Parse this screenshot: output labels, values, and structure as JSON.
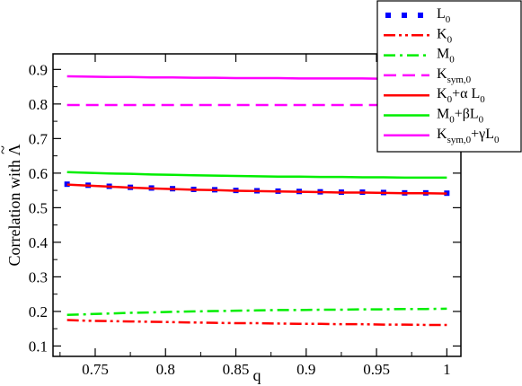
{
  "chart_data": {
    "type": "line",
    "xlabel": "q",
    "ylabel_prefix": "Correlation with ",
    "ylabel_symbol": "Λ",
    "ylabel_accent": "~",
    "xlim": [
      0.72,
      1.01
    ],
    "ylim": [
      0.07,
      0.945
    ],
    "x_ticks": [
      0.75,
      0.8,
      0.85,
      0.9,
      0.95,
      1
    ],
    "x_tick_labels": [
      "0.75",
      "0.8",
      "0.85",
      "0.9",
      "0.95",
      "1"
    ],
    "y_ticks": [
      0.1,
      0.2,
      0.3,
      0.4,
      0.5,
      0.6,
      0.7,
      0.8,
      0.9
    ],
    "y_tick_labels": [
      "0.1",
      "0.2",
      "0.3",
      "0.4",
      "0.5",
      "0.6",
      "0.7",
      "0.8",
      "0.9"
    ],
    "x": [
      0.73,
      0.745,
      0.76,
      0.775,
      0.79,
      0.805,
      0.82,
      0.835,
      0.85,
      0.865,
      0.88,
      0.895,
      0.91,
      0.925,
      0.94,
      0.955,
      0.97,
      0.985,
      1.0
    ],
    "series": [
      {
        "id": "L0",
        "color": "#0000ff",
        "style": "squares",
        "legend": [
          {
            "t": "L"
          },
          {
            "t": "0",
            "sub": true
          }
        ],
        "values": [
          0.568,
          0.565,
          0.562,
          0.559,
          0.557,
          0.555,
          0.553,
          0.552,
          0.55,
          0.549,
          0.548,
          0.547,
          0.546,
          0.545,
          0.545,
          0.544,
          0.543,
          0.543,
          0.542
        ]
      },
      {
        "id": "K0",
        "color": "#ff0000",
        "style": "dashdotdot",
        "legend": [
          {
            "t": "K"
          },
          {
            "t": "0",
            "sub": true
          }
        ],
        "values": [
          0.175,
          0.173,
          0.172,
          0.171,
          0.17,
          0.169,
          0.168,
          0.167,
          0.166,
          0.166,
          0.165,
          0.164,
          0.164,
          0.163,
          0.163,
          0.162,
          0.162,
          0.161,
          0.161
        ]
      },
      {
        "id": "M0",
        "color": "#00ee00",
        "style": "dashdot",
        "legend": [
          {
            "t": "M"
          },
          {
            "t": "0",
            "sub": true
          }
        ],
        "values": [
          0.19,
          0.192,
          0.194,
          0.196,
          0.197,
          0.199,
          0.2,
          0.201,
          0.202,
          0.203,
          0.204,
          0.204,
          0.205,
          0.205,
          0.206,
          0.206,
          0.207,
          0.207,
          0.208
        ]
      },
      {
        "id": "Ksym0",
        "color": "#ff00ff",
        "style": "dashed",
        "legend": [
          {
            "t": "K"
          },
          {
            "t": "sym,0",
            "sub": true
          }
        ],
        "values": [
          0.797,
          0.797,
          0.797,
          0.797,
          0.797,
          0.797,
          0.797,
          0.797,
          0.797,
          0.797,
          0.797,
          0.797,
          0.797,
          0.797,
          0.797,
          0.797,
          0.797,
          0.797,
          0.797
        ]
      },
      {
        "id": "K0aL0",
        "color": "#ff0000",
        "style": "solid",
        "legend": [
          {
            "t": "K"
          },
          {
            "t": "0",
            "sub": true
          },
          {
            "t": "+α L"
          },
          {
            "t": "0",
            "sub": true
          }
        ],
        "values": [
          0.567,
          0.564,
          0.561,
          0.558,
          0.556,
          0.554,
          0.552,
          0.551,
          0.549,
          0.548,
          0.547,
          0.546,
          0.545,
          0.544,
          0.544,
          0.543,
          0.542,
          0.542,
          0.541
        ]
      },
      {
        "id": "M0bL0",
        "color": "#00ee00",
        "style": "solid",
        "legend": [
          {
            "t": "M"
          },
          {
            "t": "0",
            "sub": true
          },
          {
            "t": "+βL"
          },
          {
            "t": "0",
            "sub": true
          }
        ],
        "values": [
          0.603,
          0.601,
          0.599,
          0.598,
          0.596,
          0.595,
          0.594,
          0.593,
          0.592,
          0.591,
          0.59,
          0.59,
          0.589,
          0.589,
          0.588,
          0.588,
          0.587,
          0.587,
          0.587
        ]
      },
      {
        "id": "Ksym0gL0",
        "color": "#ff00ff",
        "style": "solid",
        "legend": [
          {
            "t": "K"
          },
          {
            "t": "sym,0",
            "sub": true
          },
          {
            "t": "+γL"
          },
          {
            "t": "0",
            "sub": true
          }
        ],
        "values": [
          0.88,
          0.879,
          0.878,
          0.878,
          0.877,
          0.877,
          0.876,
          0.876,
          0.875,
          0.875,
          0.875,
          0.874,
          0.874,
          0.874,
          0.874,
          0.873,
          0.873,
          0.873,
          0.873
        ]
      }
    ],
    "legend_position": "top-right",
    "grid": false
  }
}
